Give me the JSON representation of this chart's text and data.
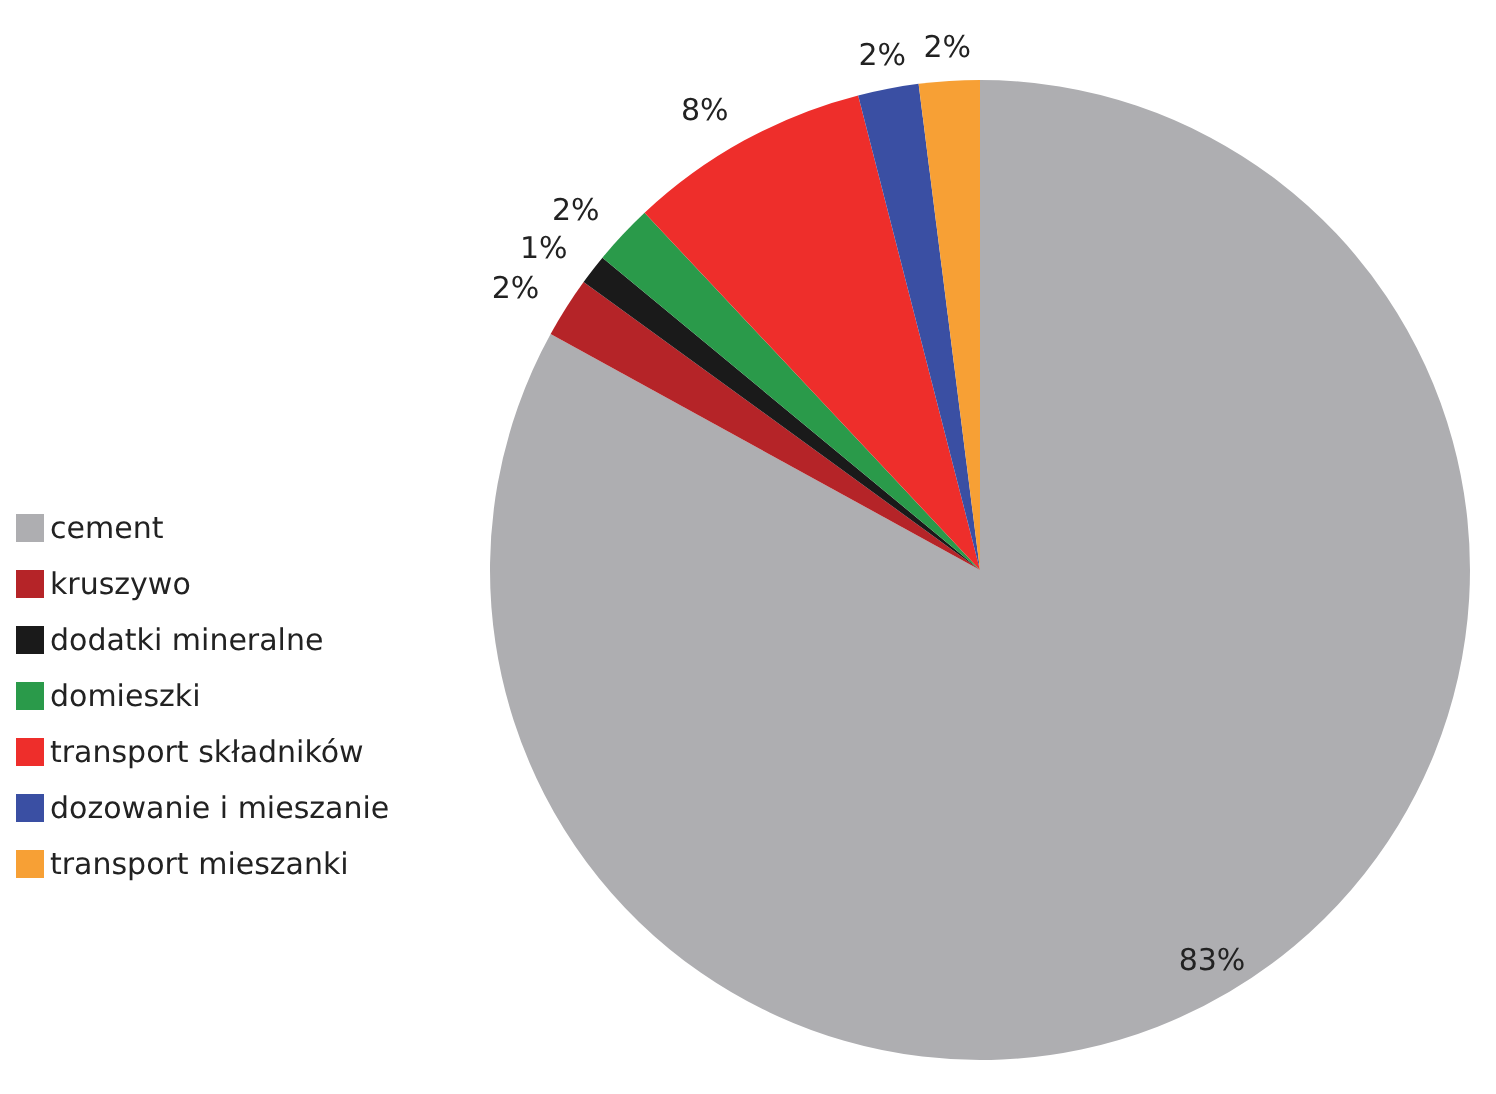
{
  "chart_data": {
    "type": "pie",
    "categories": [
      "cement",
      "kruszywo",
      "dodatki mineralne",
      "domieszki",
      "transport składników",
      "dozowanie i mieszanie",
      "transport mieszanki"
    ],
    "values": [
      83,
      2,
      1,
      2,
      8,
      2,
      2
    ],
    "colors": [
      "#aeaeb1",
      "#b52428",
      "#1a1a1a",
      "#2a9a4a",
      "#ee2e2b",
      "#3a4fa3",
      "#f7a035"
    ],
    "value_labels": [
      "83%",
      "2%",
      "1%",
      "2%",
      "8%",
      "2%",
      "2%"
    ],
    "legend": "left"
  }
}
